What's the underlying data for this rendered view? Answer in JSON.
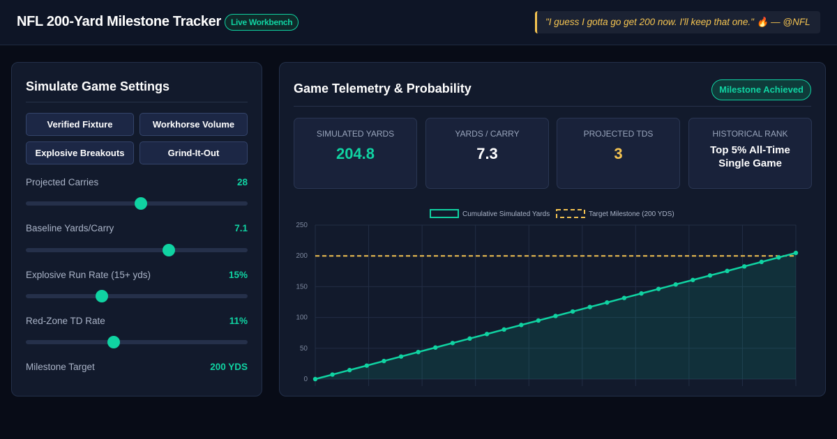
{
  "header": {
    "title": "NFL 200-Yard Milestone Tracker",
    "badge": "Live Workbench",
    "quote": "\"I guess I gotta go get 200 now. I'll keep that one.\" 🔥 — @NFL"
  },
  "settings": {
    "title": "Simulate Game Settings",
    "presets": [
      "Verified Fixture",
      "Workhorse Volume",
      "Explosive Breakouts",
      "Grind-It-Out"
    ],
    "controls": [
      {
        "label": "Projected Carries",
        "value": "28",
        "fraction": 0.52
      },
      {
        "label": "Baseline Yards/Carry",
        "value": "7.1",
        "fraction": 0.644
      },
      {
        "label": "Explosive Run Rate (15+ yds)",
        "value": "15%",
        "fraction": 0.343
      },
      {
        "label": "Red-Zone TD Rate",
        "value": "11%",
        "fraction": 0.396
      }
    ],
    "milestone": {
      "label": "Milestone Target",
      "value": "200 YDS"
    }
  },
  "telemetry": {
    "title": "Game Telemetry & Probability",
    "status": "Milestone Achieved",
    "stats": [
      {
        "label": "Simulated Yards",
        "value": "204.8",
        "color": "#10d3a2"
      },
      {
        "label": "Yards / Carry",
        "value": "7.3",
        "color": "#ffffff"
      },
      {
        "label": "Projected TDs",
        "value": "3",
        "color": "#f5c451"
      }
    ],
    "rank": {
      "label": "Historical Rank",
      "value": "Top 5% All-Time Single Game"
    }
  },
  "colors": {
    "accent": "#10d3a2",
    "target": "#f5c451",
    "background": "#080c17",
    "panel": "#121a2c"
  },
  "chart_data": {
    "type": "line",
    "ylim": [
      0,
      250
    ],
    "yticks": [
      0,
      50,
      100,
      150,
      200,
      250
    ],
    "grid": true,
    "legend": "top-center",
    "series": [
      {
        "name": "Cumulative Simulated Yards",
        "x": [
          0,
          1,
          2,
          3,
          4,
          5,
          6,
          7,
          8,
          9,
          10,
          11,
          12,
          13,
          14,
          15,
          16,
          17,
          18,
          19,
          20,
          21,
          22,
          23,
          24,
          25,
          26,
          27,
          28
        ],
        "values": [
          0,
          7.3,
          14.6,
          21.9,
          29.3,
          36.6,
          43.9,
          51.2,
          58.5,
          65.8,
          73.1,
          80.5,
          87.8,
          95.1,
          102.4,
          109.7,
          117,
          124.3,
          131.7,
          139,
          146.3,
          153.6,
          160.9,
          168.2,
          175.5,
          182.9,
          190.2,
          197.5,
          204.8
        ]
      }
    ],
    "target": {
      "name": "Target Milestone (200 YDS)",
      "value": 200
    }
  }
}
